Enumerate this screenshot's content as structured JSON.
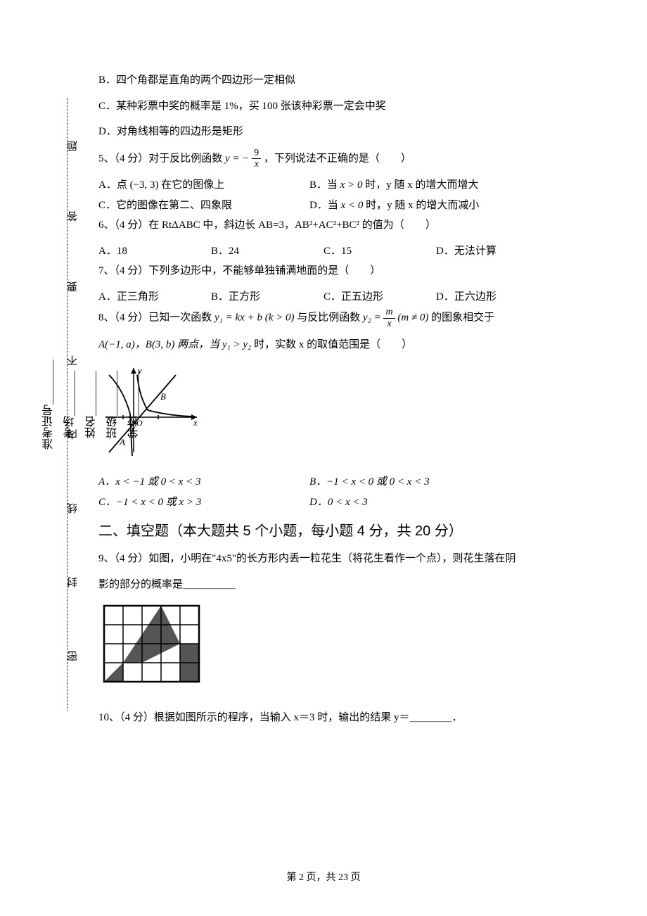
{
  "binding": {
    "labels": [
      "密",
      "封",
      "线",
      "内",
      "不",
      "要",
      "答",
      "题"
    ]
  },
  "form": {
    "fields": [
      "学校",
      "班级",
      "姓名",
      "考场",
      "准考证号"
    ]
  },
  "questions": {
    "optB": "B．四个角都是直角的两个四边形一定相似",
    "optC": "C．某种彩票中奖的概率是 1%，买 100 张该种彩票一定会中奖",
    "optD": "D．对角线相等的四边形是矩形",
    "q5": {
      "stem_pre": "5、（4 分）对于反比例函数 ",
      "eq_y": "y = −",
      "frac_num": "9",
      "frac_den": "x",
      "stem_post": "，下列说法不正确的是（　　）",
      "A": "A．点 (−3, 3) 在它的图像上",
      "B_pre": "B．当 ",
      "B_mid": "x > 0",
      "B_post": " 时，y 随 x 的增大而增大",
      "C": "C．它的图像在第二、四象限",
      "D_pre": "D．当 ",
      "D_mid": "x < 0",
      "D_post": " 时，y 随 x 的增大而减小"
    },
    "q6": {
      "stem": "6、（4 分）在 RtΔABC 中，斜边长 AB=3，AB²+AC²+BC² 的值为（　　）",
      "A": "A．18",
      "B": "B．24",
      "C": "C．15",
      "D": "D．无法计算"
    },
    "q7": {
      "stem": "7、（4 分）下列多边形中，不能够单独铺满地面的是（　　）",
      "A": "A．正三角形",
      "B": "B．正方形",
      "C": "C．正五边形",
      "D": "D．正六边形"
    },
    "q8": {
      "stem_a": "8、（4 分）已知一次函数 ",
      "y1": "y₁ = kx + b (k > 0)",
      "stem_b": " 与反比例函数 ",
      "y2_pre": "y₂ = ",
      "frac_num": "m",
      "frac_den": "x",
      "y2_post": " (m ≠ 0)",
      "stem_c": " 的图象相交于",
      "line2_a": "A(−1, a)，B(3, b) 两点，当 ",
      "cond": "y₁ > y₂",
      "line2_b": " 时，实数 x 的取值范围是（　　）",
      "graph": {
        "type": "sketch",
        "x_label": "x",
        "y_label": "y",
        "point_A": "A",
        "point_B": "B",
        "origin": "O",
        "curve_color": "#000000",
        "line_color": "#000000",
        "background": "#ffffff"
      },
      "A": "A．x < −1 或 0 < x < 3",
      "B": "B．−1 < x < 0 或 0 < x < 3",
      "C": "C．−1 < x < 0 或 x > 3",
      "D": "D．0 < x < 3"
    },
    "section2_title": "二、填空题（本大题共 5 个小题，每小题 4 分，共 20 分）",
    "q9": {
      "line1": "9、（4 分）如图，小明在\"4x5\"的长方形内丢一粒花生（将花生看作一个点），则花生落在阴",
      "line2": "影的部分的概率是＿＿＿＿＿",
      "grid": {
        "type": "infographic",
        "rows": 4,
        "cols": 5,
        "cell_size": 27,
        "grid_color": "#000000",
        "bg_color": "#ffffff",
        "shade_color": "#555555",
        "shaded_triangles": [
          {
            "pts": [
              [
                0,
                4
              ],
              [
                1,
                4
              ],
              [
                1,
                3
              ]
            ]
          },
          {
            "pts": [
              [
                1,
                3
              ],
              [
                3,
                0
              ],
              [
                4,
                2
              ],
              [
                2,
                3
              ]
            ]
          },
          {
            "pts": [
              [
                4,
                2
              ],
              [
                5,
                2
              ],
              [
                5,
                4
              ],
              [
                4,
                4
              ]
            ]
          }
        ]
      }
    },
    "q10": {
      "stem": "10、（4 分）根据如图所示的程序，当输入 x＝3 时，输出的结果 y＝＿＿＿＿．"
    }
  },
  "footer": {
    "page": "第 2 页，共 23 页"
  }
}
